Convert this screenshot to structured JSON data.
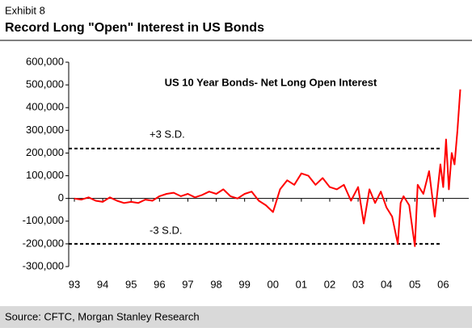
{
  "header": "Exhibit 8",
  "chart_data": {
    "type": "line",
    "title": "Record Long \"Open\" Interest in US Bonds",
    "annotation": "US 10 Year Bonds- Net Long Open Interest",
    "source": "Source: CFTC, Morgan Stanley Research",
    "xlim": [
      1992.8,
      2006.9
    ],
    "xticks": [
      {
        "value": 1993,
        "label": "93"
      },
      {
        "value": 1994,
        "label": "94"
      },
      {
        "value": 1995,
        "label": "95"
      },
      {
        "value": 1996,
        "label": "96"
      },
      {
        "value": 1997,
        "label": "97"
      },
      {
        "value": 1998,
        "label": "98"
      },
      {
        "value": 1999,
        "label": "99"
      },
      {
        "value": 2000,
        "label": "00"
      },
      {
        "value": 2001,
        "label": "01"
      },
      {
        "value": 2002,
        "label": "02"
      },
      {
        "value": 2003,
        "label": "03"
      },
      {
        "value": 2004,
        "label": "04"
      },
      {
        "value": 2005,
        "label": "05"
      },
      {
        "value": 2006,
        "label": "06"
      }
    ],
    "ylim": [
      -300000,
      600000
    ],
    "yticks": [
      {
        "value": 600000,
        "label": "600,000"
      },
      {
        "value": 500000,
        "label": "500,000"
      },
      {
        "value": 400000,
        "label": "400,000"
      },
      {
        "value": 300000,
        "label": "300,000"
      },
      {
        "value": 200000,
        "label": "200,000"
      },
      {
        "value": 100000,
        "label": "100,000"
      },
      0,
      {
        "value": -100000,
        "label": "-100,000"
      },
      {
        "value": -200000,
        "label": "-200,000"
      },
      {
        "value": -300000,
        "label": "-300,000"
      }
    ],
    "reference_lines": [
      {
        "value": 220000,
        "label": "+3 S.D."
      },
      {
        "value": -200000,
        "label": "-3 S.D."
      }
    ],
    "color": "#ff0000",
    "x": [
      1993.0,
      1993.25,
      1993.5,
      1993.75,
      1994.0,
      1994.25,
      1994.5,
      1994.75,
      1995.0,
      1995.25,
      1995.5,
      1995.75,
      1996.0,
      1996.25,
      1996.5,
      1996.75,
      1997.0,
      1997.25,
      1997.5,
      1997.75,
      1998.0,
      1998.25,
      1998.5,
      1998.75,
      1999.0,
      1999.25,
      1999.5,
      1999.75,
      2000.0,
      2000.25,
      2000.5,
      2000.75,
      2001.0,
      2001.25,
      2001.5,
      2001.75,
      2002.0,
      2002.25,
      2002.5,
      2002.75,
      2003.0,
      2003.2,
      2003.4,
      2003.6,
      2003.8,
      2004.0,
      2004.2,
      2004.4,
      2004.5,
      2004.6,
      2004.8,
      2005.0,
      2005.1,
      2005.3,
      2005.5,
      2005.7,
      2005.9,
      2006.0,
      2006.1,
      2006.2,
      2006.3,
      2006.4,
      2006.5,
      2006.6
    ],
    "values": [
      0,
      -5000,
      5000,
      -10000,
      -15000,
      5000,
      -10000,
      -20000,
      -15000,
      -20000,
      -5000,
      -10000,
      10000,
      20000,
      25000,
      10000,
      20000,
      5000,
      15000,
      30000,
      20000,
      40000,
      10000,
      0,
      20000,
      30000,
      -10000,
      -30000,
      -60000,
      40000,
      80000,
      60000,
      110000,
      100000,
      60000,
      90000,
      50000,
      40000,
      60000,
      -10000,
      50000,
      -110000,
      40000,
      -20000,
      30000,
      -40000,
      -80000,
      -200000,
      -20000,
      10000,
      -30000,
      -210000,
      60000,
      20000,
      120000,
      -80000,
      150000,
      50000,
      260000,
      40000,
      200000,
      150000,
      300000,
      480000
    ]
  }
}
